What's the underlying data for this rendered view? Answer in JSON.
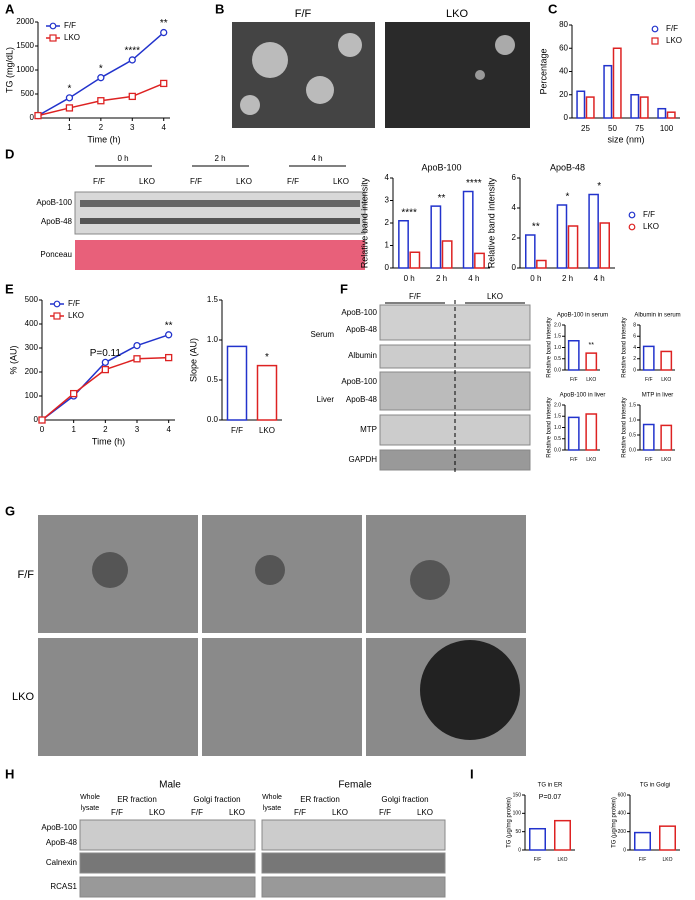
{
  "chart_data": [
    {
      "type": "line",
      "xlabel": "Time (h)",
      "ylabel": "TG (mg/dL)",
      "x": [
        0,
        1,
        2,
        3,
        4
      ],
      "xlim": [
        0,
        4.2
      ],
      "xticks": [
        1,
        2,
        3,
        4
      ],
      "ylim": [
        0,
        2000
      ],
      "yticks": [
        0,
        500,
        1000,
        1500,
        2000
      ],
      "legend": "upper left",
      "series": [
        {
          "name": "F/F",
          "color": "#2233cc",
          "values": [
            50,
            420,
            840,
            1210,
            1780
          ]
        },
        {
          "name": "LKO",
          "color": "#dd2222",
          "values": [
            50,
            210,
            360,
            450,
            720
          ]
        }
      ],
      "annotations": [
        {
          "text": "*",
          "x": 1
        },
        {
          "text": "*",
          "x": 2
        },
        {
          "text": "****",
          "x": 3
        },
        {
          "text": "**",
          "x": 4
        }
      ]
    },
    {
      "type": "bar",
      "xlabel": "size (nm)",
      "ylabel": "Percentage",
      "categories": [
        "25",
        "50",
        "75",
        "100"
      ],
      "ylim": [
        0,
        80
      ],
      "yticks": [
        0,
        20,
        40,
        60,
        80
      ],
      "legend": "upper right",
      "series": [
        {
          "name": "F/F",
          "color": "#2233cc",
          "values": [
            23,
            45,
            20,
            8
          ]
        },
        {
          "name": "LKO",
          "color": "#dd2222",
          "values": [
            18,
            60,
            18,
            5
          ]
        }
      ]
    },
    {
      "type": "bar",
      "title": "ApoB-100",
      "ylabel": "Relative band intensity",
      "categories": [
        "0 h",
        "2 h",
        "4 h"
      ],
      "ylim": [
        0,
        4
      ],
      "yticks": [
        0,
        1,
        2,
        3,
        4
      ],
      "series": [
        {
          "name": "F/F",
          "color": "#2233cc",
          "values": [
            2.1,
            2.75,
            3.4
          ]
        },
        {
          "name": "LKO",
          "color": "#dd2222",
          "values": [
            0.7,
            1.2,
            0.65
          ]
        }
      ],
      "annotations": [
        {
          "text": "****",
          "category": "0 h"
        },
        {
          "text": "**",
          "category": "2 h"
        },
        {
          "text": "****",
          "category": "4 h"
        }
      ]
    },
    {
      "type": "bar",
      "title": "ApoB-48",
      "ylabel": "Relative band intensity",
      "categories": [
        "0 h",
        "2 h",
        "4 h"
      ],
      "ylim": [
        0,
        6
      ],
      "yticks": [
        0,
        2,
        4,
        6
      ],
      "legend": "right",
      "series": [
        {
          "name": "F/F",
          "color": "#2233cc",
          "values": [
            2.2,
            4.2,
            4.9
          ]
        },
        {
          "name": "LKO",
          "color": "#dd2222",
          "values": [
            0.5,
            2.8,
            3.0
          ]
        }
      ],
      "annotations": [
        {
          "text": "**",
          "category": "0 h"
        },
        {
          "text": "*",
          "category": "2 h"
        },
        {
          "text": "*",
          "category": "4 h"
        }
      ]
    },
    {
      "type": "line",
      "xlabel": "Time (h)",
      "ylabel": "% (AU)",
      "x": [
        0,
        1,
        2,
        3,
        4
      ],
      "xlim": [
        0,
        4.2
      ],
      "xticks": [
        0,
        1,
        2,
        3,
        4
      ],
      "ylim": [
        0,
        500
      ],
      "yticks": [
        0,
        100,
        200,
        300,
        400,
        500
      ],
      "legend": "upper left",
      "series": [
        {
          "name": "F/F",
          "color": "#2233cc",
          "values": [
            0,
            100,
            240,
            310,
            355
          ]
        },
        {
          "name": "LKO",
          "color": "#dd2222",
          "values": [
            0,
            110,
            210,
            255,
            260
          ]
        }
      ],
      "annotations": [
        {
          "text": "**",
          "x": 4
        },
        {
          "text": "P=0.11",
          "x": 2
        }
      ]
    },
    {
      "type": "bar",
      "ylabel": "Slope (AU)",
      "categories": [
        "F/F",
        "LKO"
      ],
      "values": [
        0.92,
        0.68
      ],
      "colors": [
        "#2233cc",
        "#dd2222"
      ],
      "ylim": [
        0,
        1.5
      ],
      "yticks": [
        {
          "value": 0,
          "label": "0.0"
        },
        0.5,
        {
          "value": 1,
          "label": "1.0"
        },
        1.5
      ],
      "annotations": [
        {
          "text": "*",
          "category": "LKO"
        }
      ]
    },
    {
      "type": "bar",
      "title": "ApoB-100 in serum",
      "ylabel": "Relative band intensity",
      "categories": [
        "F/F",
        "LKO"
      ],
      "values": [
        1.3,
        0.75
      ],
      "colors": [
        "#2233cc",
        "#dd2222"
      ],
      "ylim": [
        0,
        2
      ],
      "yticks": [
        {
          "value": 0,
          "label": "0.0"
        },
        0.5,
        {
          "value": 1,
          "label": "1.0"
        },
        1.5,
        {
          "value": 2,
          "label": "2.0"
        }
      ],
      "annotations": [
        {
          "text": "**",
          "category": "LKO"
        }
      ]
    },
    {
      "type": "bar",
      "title": "Albumin in serum",
      "ylabel": "Relative band intensity",
      "categories": [
        "F/F",
        "LKO"
      ],
      "values": [
        4.2,
        3.3
      ],
      "colors": [
        "#2233cc",
        "#dd2222"
      ],
      "ylim": [
        0,
        8
      ],
      "yticks": [
        0,
        2,
        4,
        6,
        8
      ]
    },
    {
      "type": "bar",
      "title": "ApoB-100  in liver",
      "ylabel": "Relative band intensity",
      "categories": [
        "F/F",
        "LKO"
      ],
      "values": [
        1.45,
        1.6
      ],
      "colors": [
        "#2233cc",
        "#dd2222"
      ],
      "ylim": [
        0,
        2
      ],
      "yticks": [
        {
          "value": 0,
          "label": "0.0"
        },
        0.5,
        {
          "value": 1,
          "label": "1.0"
        },
        1.5,
        {
          "value": 2,
          "label": "2.0"
        }
      ]
    },
    {
      "type": "bar",
      "title": "MTP in liver",
      "ylabel": "Relative band intensity",
      "categories": [
        "F/F",
        "LKO"
      ],
      "values": [
        0.85,
        0.82
      ],
      "colors": [
        "#2233cc",
        "#dd2222"
      ],
      "ylim": [
        0,
        1.5
      ],
      "yticks": [
        {
          "value": 0,
          "label": "0.0"
        },
        0.5,
        {
          "value": 1,
          "label": "1.0"
        },
        1.5
      ]
    },
    {
      "type": "bar",
      "title": "TG in ER",
      "ylabel": "TG (μg/mg protein)",
      "categories": [
        "F/F",
        "LKO"
      ],
      "values": [
        58,
        80
      ],
      "colors": [
        "#2233cc",
        "#dd2222"
      ],
      "ylim": [
        0,
        150
      ],
      "yticks": [
        0,
        50,
        100,
        150
      ],
      "annotations": [
        {
          "text": "P=0.07"
        }
      ]
    },
    {
      "type": "bar",
      "title": "TG in Golgi",
      "ylabel": "TG (μg/mg protein)",
      "categories": [
        "F/F",
        "LKO"
      ],
      "values": [
        190,
        260
      ],
      "colors": [
        "#2233cc",
        "#dd2222"
      ],
      "ylim": [
        0,
        600
      ],
      "yticks": [
        0,
        200,
        400,
        600
      ]
    }
  ],
  "figure": {
    "panels": [
      "A",
      "B",
      "C",
      "D",
      "E",
      "F",
      "G",
      "H",
      "I"
    ],
    "B": [
      "F/F",
      "LKO"
    ],
    "D": {
      "times": [
        "0 h",
        "2 h",
        "4 h"
      ],
      "groups": [
        "F/F",
        "LKO",
        "F/F",
        "LKO",
        "F/F",
        "LKO"
      ],
      "rows": [
        "ApoB-100",
        "ApoB-48",
        "Ponceau"
      ]
    },
    "F": {
      "groups": [
        "F/F",
        "LKO"
      ],
      "sections": [
        "Serum",
        "Liver"
      ],
      "rows": [
        "ApoB-100",
        "ApoB-48",
        "Albumin",
        "ApoB-100",
        "ApoB-48",
        "MTP",
        "GAPDH"
      ]
    },
    "G": [
      "F/F",
      "LKO"
    ],
    "H": {
      "sexes": [
        "Male",
        "Female"
      ],
      "lysate": [
        "Whole",
        "lysate"
      ],
      "fractions": [
        "ER fraction",
        "Golgi fraction",
        "ER fraction",
        "Golgi fraction"
      ],
      "groups": [
        "F/F",
        "LKO",
        "F/F",
        "LKO",
        "F/F",
        "LKO",
        "F/F",
        "LKO"
      ],
      "rows": [
        "ApoB-100",
        "ApoB-48",
        "Calnexin",
        "RCAS1"
      ]
    }
  }
}
